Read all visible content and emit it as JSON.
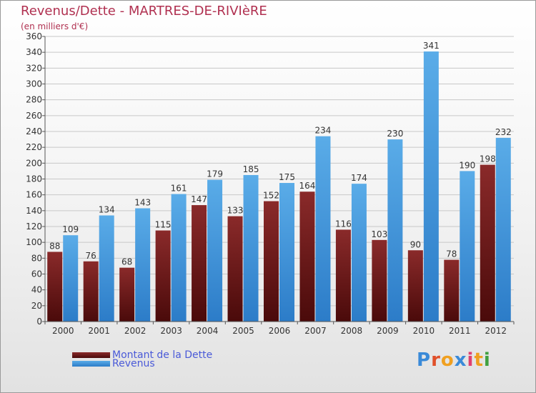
{
  "header": {
    "title": "Revenus/Dette - MARTRES-DE-RIVIèRE",
    "subtitle": "(en milliers d'€)"
  },
  "colors": {
    "title": "#b03050",
    "dette_top": "#8a2a2a",
    "dette_bottom": "#4a0a0a",
    "revenus_top": "#5aace8",
    "revenus_bottom": "#2c7cc8",
    "legend_text": "#4a5ad8"
  },
  "legend": [
    {
      "label": "Montant de la Dette",
      "series": "dette"
    },
    {
      "label": "Revenus",
      "series": "revenus"
    }
  ],
  "logo": {
    "letters": [
      "P",
      "r",
      "o",
      "x",
      "i",
      "t",
      "i"
    ],
    "colors": [
      "#3a8ad8",
      "#e0502a",
      "#f0a020",
      "#3a8ad8",
      "#e04070",
      "#f0a020",
      "#40a040"
    ]
  },
  "chart_data": {
    "type": "bar",
    "title": "Revenus/Dette - MARTRES-DE-RIVIèRE",
    "subtitle": "(en milliers d'€)",
    "categories": [
      "2000",
      "2001",
      "2002",
      "2003",
      "2004",
      "2005",
      "2006",
      "2007",
      "2008",
      "2009",
      "2010",
      "2011",
      "2012"
    ],
    "series": [
      {
        "name": "Montant de la Dette",
        "values": [
          88,
          76,
          68,
          115,
          147,
          133,
          152,
          164,
          116,
          103,
          90,
          78,
          198
        ]
      },
      {
        "name": "Revenus",
        "values": [
          109,
          134,
          143,
          161,
          179,
          185,
          175,
          234,
          174,
          230,
          341,
          190,
          232
        ]
      }
    ],
    "ylim": [
      0,
      360
    ],
    "ytick_step": 20,
    "grid": true,
    "legend_position": "bottom-left"
  }
}
